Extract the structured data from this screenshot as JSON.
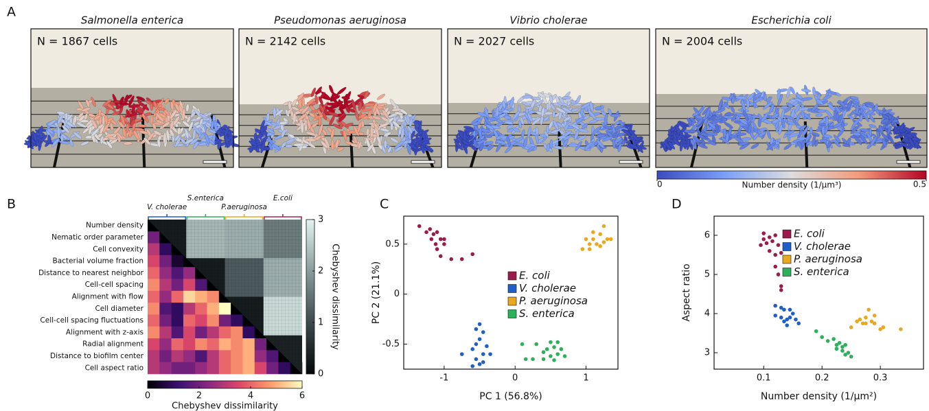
{
  "panel_labels": [
    "A",
    "B",
    "C",
    "D"
  ],
  "panel_a": {
    "images": [
      {
        "title": "Salmonella enterica",
        "caption": "N = 1867 cells"
      },
      {
        "title": "Pseudomonas aeruginosa",
        "caption": "N = 2142 cells"
      },
      {
        "title": "Vibrio cholerae",
        "caption": "N = 2027 cells"
      },
      {
        "title": "Escherichia coli",
        "caption": "N = 2004 cells"
      }
    ],
    "colorbar": {
      "label": "Number density (1/μm³)",
      "ticks": [
        0,
        0.5
      ]
    }
  },
  "chart_data": [
    {
      "type": "heatmap",
      "row_labels": [
        "Number density",
        "Nematic order parameter",
        "Cell convexity",
        "Bacterial volume fraction",
        "Distance to nearest neighbor",
        "Cell-cell spacing",
        "Alignment with flow",
        "Cell diameter",
        "Cell-cell spacing fluctuations",
        "Alignment with z-axis",
        "Radial alignment",
        "Distance to biofilm center",
        "Cell aspect ratio"
      ],
      "matrix": [
        [
          0
        ],
        [
          2,
          0
        ],
        [
          3,
          1,
          0
        ],
        [
          3.5,
          2,
          0.5,
          0
        ],
        [
          4,
          2.5,
          1.5,
          2.5,
          0
        ],
        [
          4.5,
          3,
          2,
          3.5,
          1.5,
          0
        ],
        [
          4,
          2.5,
          4,
          5.5,
          5,
          4.5,
          0
        ],
        [
          4.5,
          1.5,
          1,
          3,
          4,
          5,
          6,
          0
        ],
        [
          4,
          2,
          1,
          4,
          3.5,
          4.5,
          2,
          1,
          0
        ],
        [
          4.5,
          3,
          1.5,
          3.5,
          2,
          3,
          4,
          4.5,
          1,
          0
        ],
        [
          3.5,
          2.5,
          4,
          3.5,
          4.5,
          4,
          5,
          4.5,
          5,
          2,
          0
        ],
        [
          3,
          2,
          3,
          2.5,
          1.5,
          3,
          4,
          4.5,
          5,
          2.5,
          1.5,
          0
        ],
        [
          3,
          2.5,
          2,
          2,
          2.5,
          3,
          4,
          4.5,
          5,
          3.5,
          2,
          1,
          0
        ]
      ],
      "colorbar": {
        "label": "Chebyshev dissimilarity",
        "lim": [
          0,
          6
        ],
        "ticks": [
          0,
          2,
          4,
          6
        ]
      },
      "sample_groups": {
        "names": [
          "V. cholerae",
          "S.enterica",
          "P.aeruginosa",
          "E.coli"
        ],
        "colors": [
          "#1f5fc8",
          "#2bb15a",
          "#e8a820",
          "#b0204f"
        ],
        "matrix": [
          [
            0.3,
            2.3,
            2.2,
            1.6
          ],
          [
            0.3,
            1.2,
            2.2
          ],
          [
            0.3,
            2.7
          ],
          [
            0.4
          ]
        ]
      },
      "sample_colorbar": {
        "label": "Chebyshev dissimilarity",
        "lim": [
          0,
          3
        ],
        "ticks": [
          0,
          1,
          2,
          3
        ]
      }
    },
    {
      "type": "scatter",
      "x_label": "PC 1 (56.8%)",
      "y_label": "PC 2 (21.1%)",
      "xlim": [
        -1.57,
        1.45
      ],
      "ylim": [
        -0.75,
        0.78
      ],
      "xticks": [
        -1,
        0,
        1
      ],
      "yticks": [
        -0.5,
        0,
        0.5
      ],
      "series": [
        {
          "name": "E. coli",
          "color": "#9b1b4a",
          "x": [
            -1.35,
            -1.25,
            -1.2,
            -1.15,
            -1.1,
            -1.05,
            -1.18,
            -1.0,
            -1.1,
            -1.05,
            -0.9,
            -0.75,
            -0.6,
            -1.0,
            -1.12
          ],
          "y": [
            0.68,
            0.62,
            0.65,
            0.6,
            0.62,
            0.55,
            0.55,
            0.5,
            0.45,
            0.38,
            0.35,
            0.35,
            0.4,
            0.55,
            0.5
          ]
        },
        {
          "name": "V. cholerae",
          "color": "#1f5fc8",
          "x": [
            -0.5,
            -0.55,
            -0.45,
            -0.5,
            -0.55,
            -0.4,
            -0.6,
            -0.45,
            -0.35,
            -0.75,
            -0.55,
            -0.5,
            -0.6,
            -0.45
          ],
          "y": [
            -0.3,
            -0.35,
            -0.38,
            -0.45,
            -0.5,
            -0.52,
            -0.55,
            -0.6,
            -0.6,
            -0.6,
            -0.65,
            -0.7,
            -0.72,
            -0.68
          ]
        },
        {
          "name": "P. aeruginosa",
          "color": "#e8a820",
          "x": [
            1.25,
            1.2,
            1.3,
            1.35,
            1.25,
            1.1,
            1.05,
            1.0,
            1.15,
            1.2,
            1.05,
            0.95,
            1.1
          ],
          "y": [
            0.68,
            0.6,
            0.55,
            0.55,
            0.52,
            0.55,
            0.5,
            0.55,
            0.5,
            0.48,
            0.45,
            0.45,
            0.62
          ]
        },
        {
          "name": "S. enterica",
          "color": "#2bb15a",
          "x": [
            0.1,
            0.3,
            0.5,
            0.6,
            0.55,
            0.45,
            0.65,
            0.4,
            0.6,
            0.5,
            0.15,
            0.25,
            0.4,
            0.7,
            0.55
          ],
          "y": [
            -0.5,
            -0.5,
            -0.48,
            -0.48,
            -0.53,
            -0.55,
            -0.55,
            -0.58,
            -0.6,
            -0.62,
            -0.65,
            -0.65,
            -0.65,
            -0.62,
            -0.66
          ]
        }
      ]
    },
    {
      "type": "scatter",
      "x_label": "Number density (1/μm²)",
      "y_label": "Aspect ratio",
      "xlim": [
        0.015,
        0.374
      ],
      "ylim": [
        2.58,
        6.49
      ],
      "xticks": [
        0.1,
        0.2,
        0.3
      ],
      "yticks": [
        3,
        4,
        5,
        6
      ],
      "series": [
        {
          "name": "E. coli",
          "color": "#9b1b4a",
          "x": [
            0.1,
            0.11,
            0.12,
            0.095,
            0.105,
            0.115,
            0.125,
            0.11,
            0.12,
            0.13,
            0.12,
            0.125,
            0.13,
            0.13,
            0.1
          ],
          "y": [
            6.05,
            5.95,
            6.0,
            5.75,
            5.8,
            5.85,
            5.75,
            5.6,
            5.5,
            5.55,
            5.2,
            5.0,
            4.7,
            4.6,
            5.9
          ]
        },
        {
          "name": "V. cholerae",
          "color": "#1f5fc8",
          "x": [
            0.12,
            0.13,
            0.135,
            0.145,
            0.15,
            0.12,
            0.13,
            0.14,
            0.135,
            0.14,
            0.155,
            0.16,
            0.145
          ],
          "y": [
            4.2,
            4.15,
            4.1,
            4.1,
            4.0,
            3.95,
            3.9,
            3.85,
            3.8,
            3.7,
            3.85,
            3.75,
            3.9
          ]
        },
        {
          "name": "P. aeruginosa",
          "color": "#e8a820",
          "x": [
            0.25,
            0.26,
            0.265,
            0.27,
            0.275,
            0.28,
            0.285,
            0.29,
            0.29,
            0.3,
            0.305,
            0.335,
            0.275
          ],
          "y": [
            3.65,
            3.8,
            3.85,
            3.75,
            3.9,
            4.1,
            3.8,
            3.95,
            3.75,
            3.6,
            3.65,
            3.6,
            3.75
          ]
        },
        {
          "name": "S. enterica",
          "color": "#2bb15a",
          "x": [
            0.19,
            0.2,
            0.21,
            0.22,
            0.225,
            0.23,
            0.235,
            0.24,
            0.235,
            0.245,
            0.25,
            0.24,
            0.225
          ],
          "y": [
            3.55,
            3.4,
            3.3,
            3.35,
            3.2,
            3.25,
            3.15,
            3.2,
            3.05,
            3.0,
            2.9,
            2.95,
            3.1
          ]
        }
      ]
    }
  ]
}
